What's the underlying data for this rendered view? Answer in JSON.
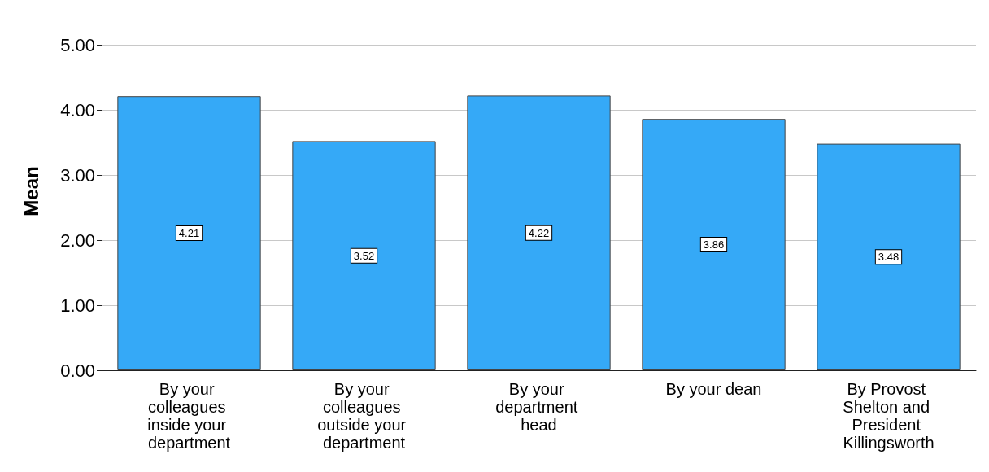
{
  "chart_data": {
    "type": "bar",
    "ylabel": "Mean",
    "categories": [
      "By your colleagues inside your department",
      "By your colleagues outside your department",
      "By your department head",
      "By your dean",
      "By Provost Shelton and President Killingsworth"
    ],
    "values": [
      4.21,
      3.52,
      4.22,
      3.86,
      3.48
    ],
    "color": "#35a9f7",
    "ylim": [
      0,
      5.5
    ],
    "yticks": [
      {
        "value": 0,
        "label": "0.00"
      },
      {
        "value": 1,
        "label": "1.00"
      },
      {
        "value": 2,
        "label": "2.00"
      },
      {
        "value": 3,
        "label": "3.00"
      },
      {
        "value": 4,
        "label": "4.00"
      },
      {
        "value": 5,
        "label": "5.00"
      }
    ],
    "grid": "y",
    "data_labels": true
  }
}
